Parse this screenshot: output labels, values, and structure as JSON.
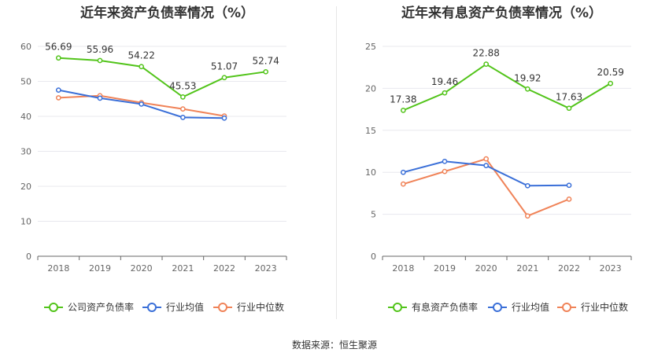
{
  "source": "数据来源：恒生聚源",
  "chart_data": [
    {
      "type": "line",
      "title": "近年来资产负债率情况（%）",
      "categories": [
        "2018",
        "2019",
        "2020",
        "2021",
        "2022",
        "2023"
      ],
      "ylim": [
        0,
        60
      ],
      "yticks": [
        0,
        10,
        20,
        30,
        40,
        50,
        60
      ],
      "grid": true,
      "legend_position": "bottom",
      "series": [
        {
          "name": "公司资产负债率",
          "color": "#52c41a",
          "values": [
            56.69,
            55.96,
            54.22,
            45.53,
            51.07,
            52.74
          ],
          "labels": [
            "56.69",
            "55.96",
            "54.22",
            "45.53",
            "51.07",
            "52.74"
          ]
        },
        {
          "name": "行业均值",
          "color": "#3a6fd8",
          "values": [
            47.5,
            45.2,
            43.5,
            39.7,
            39.5,
            null
          ]
        },
        {
          "name": "行业中位数",
          "color": "#f08358",
          "values": [
            45.3,
            45.9,
            43.9,
            42.1,
            40.1,
            null
          ]
        }
      ]
    },
    {
      "type": "line",
      "title": "近年来有息资产负债率情况（%）",
      "categories": [
        "2018",
        "2019",
        "2020",
        "2021",
        "2022",
        "2023"
      ],
      "ylim": [
        0,
        25
      ],
      "yticks": [
        0,
        5,
        10,
        15,
        20,
        25
      ],
      "grid": true,
      "legend_position": "bottom",
      "series": [
        {
          "name": "有息资产负债率",
          "color": "#52c41a",
          "values": [
            17.38,
            19.46,
            22.88,
            19.92,
            17.63,
            20.59
          ],
          "labels": [
            "17.38",
            "19.46",
            "22.88",
            "19.92",
            "17.63",
            "20.59"
          ]
        },
        {
          "name": "行业均值",
          "color": "#3a6fd8",
          "values": [
            10.0,
            11.3,
            10.8,
            8.4,
            8.45,
            null
          ]
        },
        {
          "name": "行业中位数",
          "color": "#f08358",
          "values": [
            8.6,
            10.1,
            11.6,
            4.8,
            6.8,
            null
          ]
        }
      ]
    }
  ]
}
